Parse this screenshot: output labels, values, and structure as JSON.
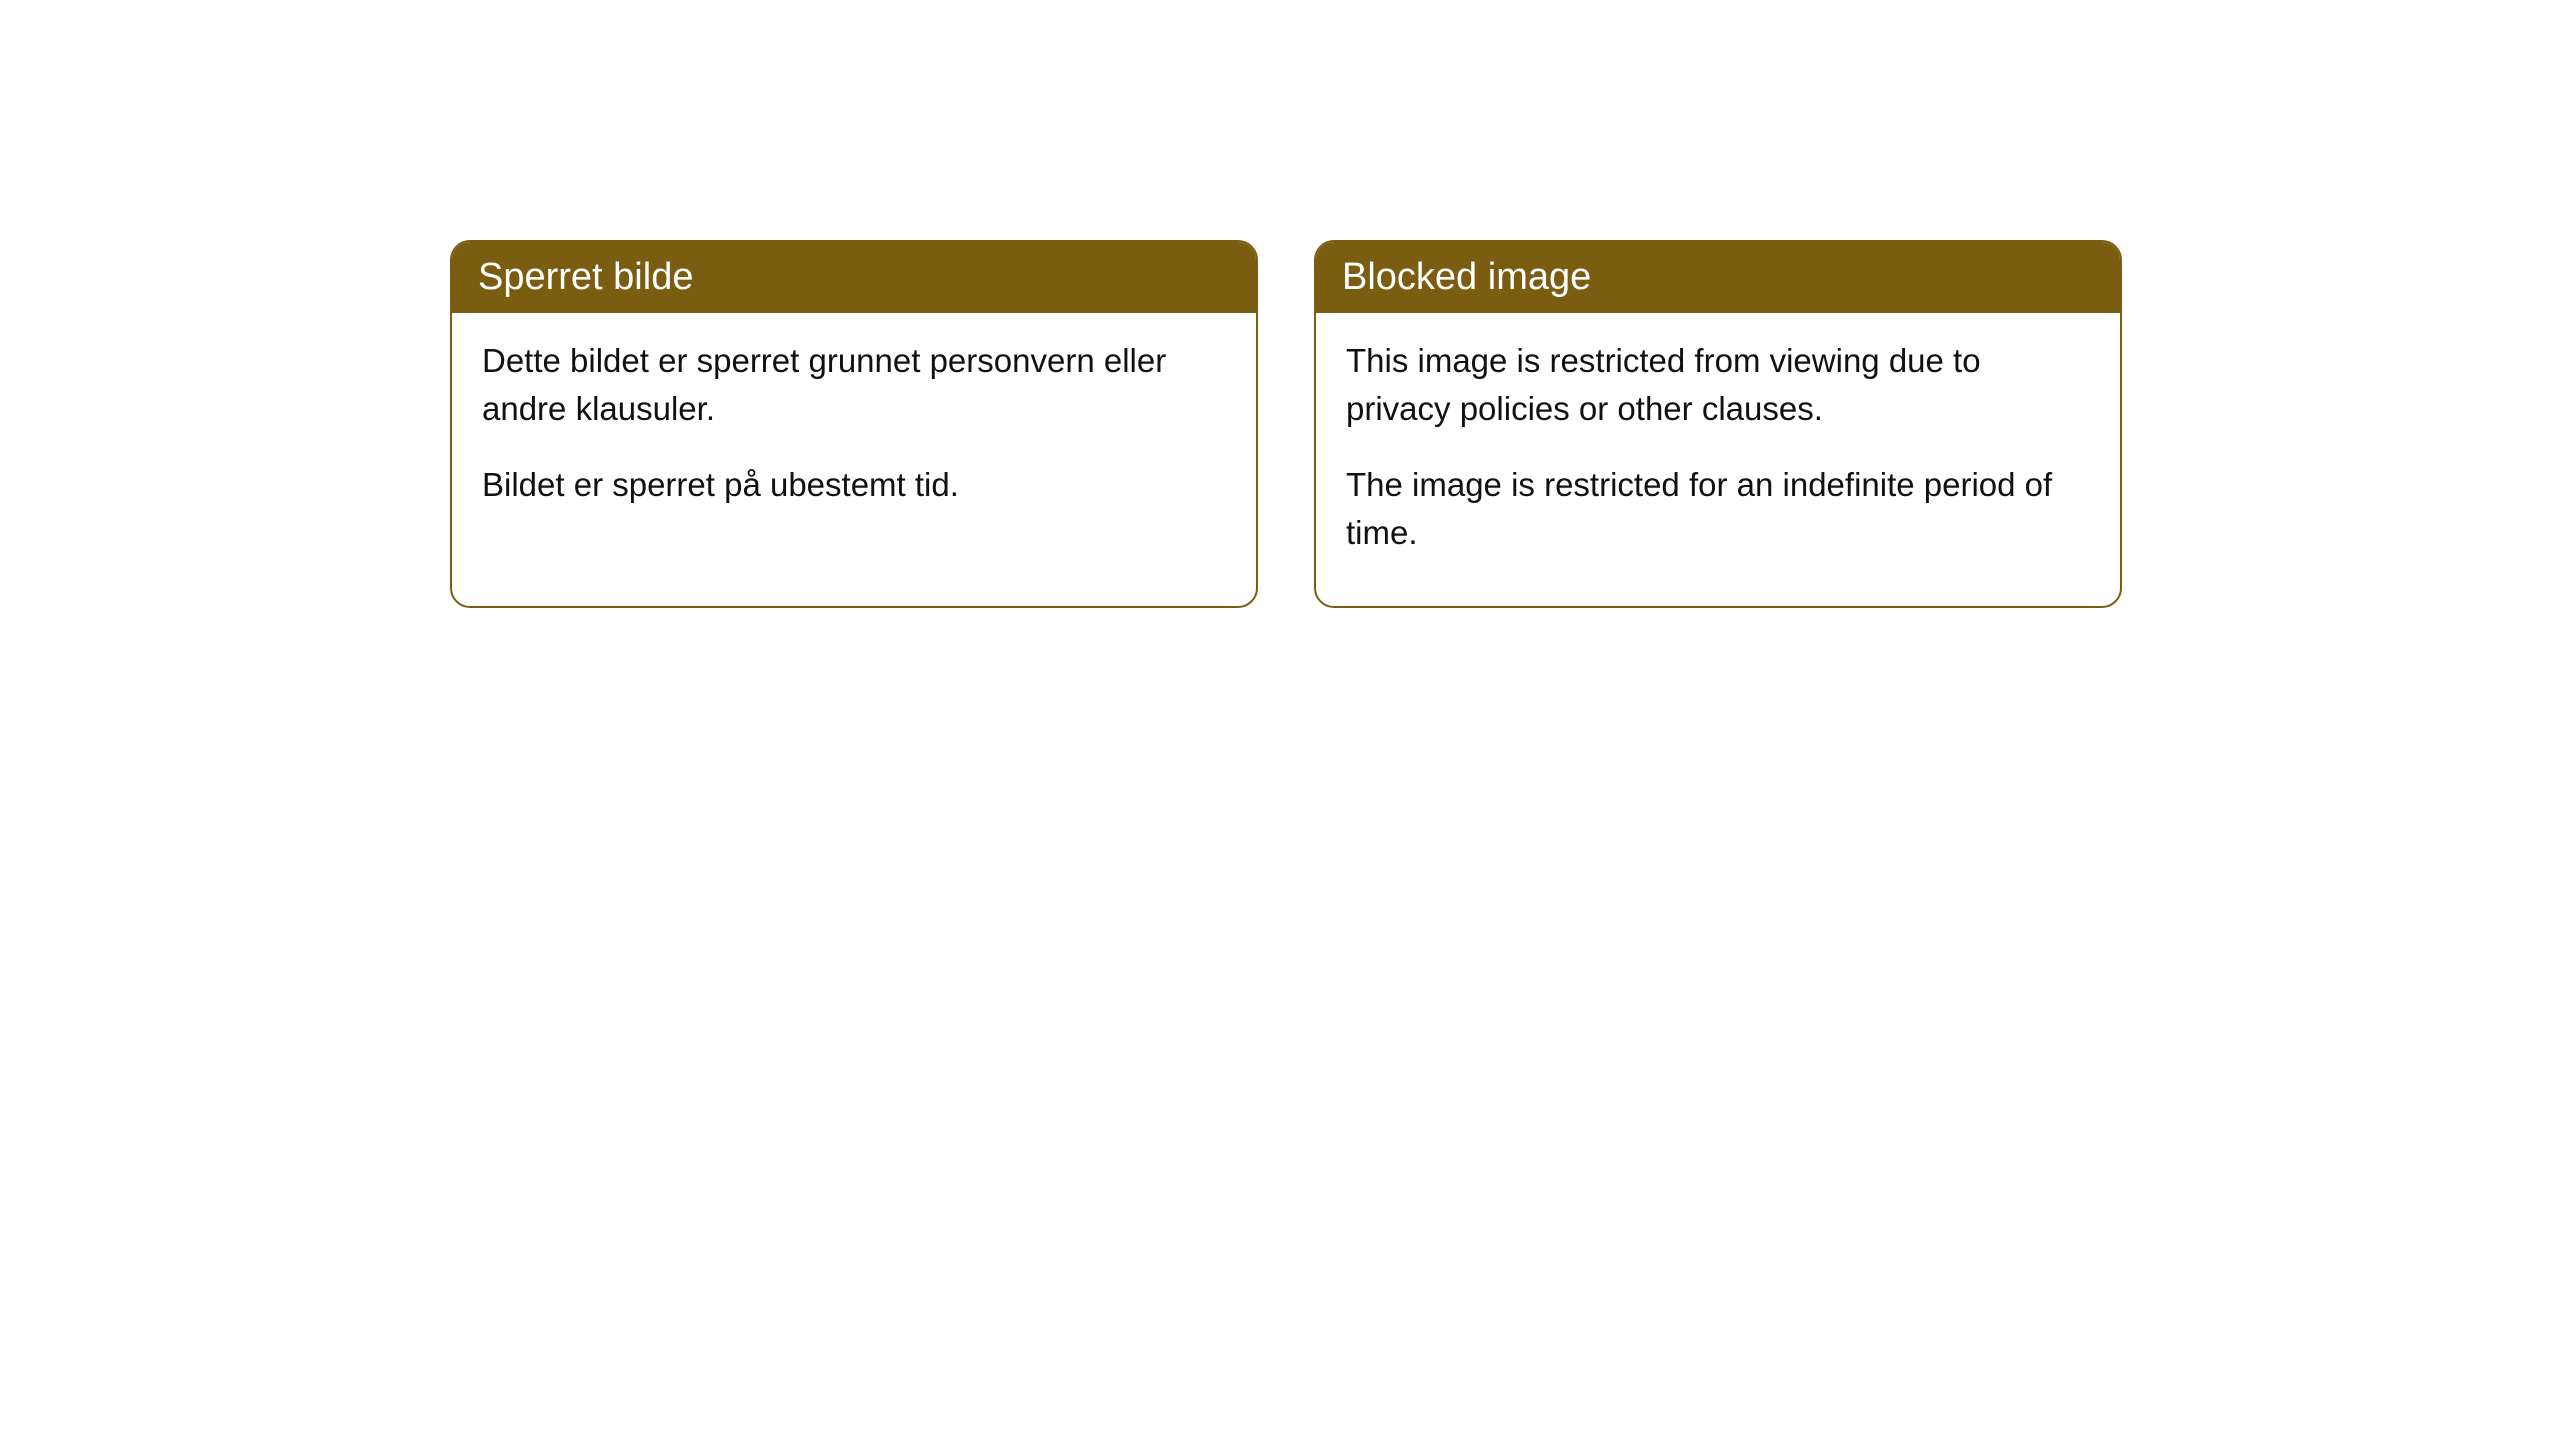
{
  "cards": [
    {
      "title": "Sperret bilde",
      "paragraph1": "Dette bildet er sperret grunnet personvern eller andre klausuler.",
      "paragraph2": "Bildet er sperret på ubestemt tid."
    },
    {
      "title": "Blocked image",
      "paragraph1": "This image is restricted from viewing due to privacy policies or other clauses.",
      "paragraph2": "The image is restricted for an indefinite period of time."
    }
  ],
  "styling": {
    "header_background_color": "#7a5d10",
    "header_text_color": "#ffffff",
    "card_border_color": "#7a5d10",
    "card_background_color": "#ffffff",
    "body_text_color": "#111111",
    "page_background_color": "#ffffff",
    "border_radius": 20,
    "title_fontsize": 38,
    "body_fontsize": 33
  }
}
